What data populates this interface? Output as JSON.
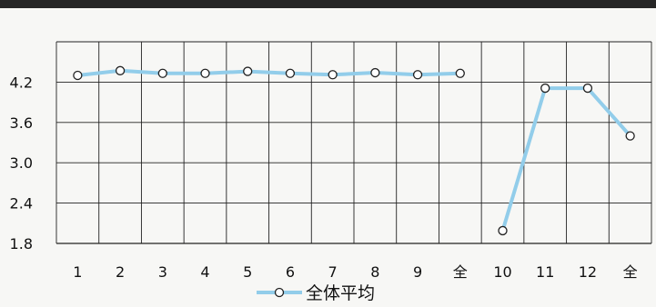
{
  "chart_data": {
    "type": "line",
    "categories": [
      "1",
      "2",
      "3",
      "4",
      "5",
      "6",
      "7",
      "8",
      "9",
      "全",
      "10",
      "11",
      "12",
      "全"
    ],
    "groups": [
      {
        "start": 0,
        "end": 9
      },
      {
        "start": 10,
        "end": 13
      }
    ],
    "series": [
      {
        "name": "全体平均",
        "values": [
          4.3,
          4.37,
          4.33,
          4.33,
          4.36,
          4.33,
          4.31,
          4.34,
          4.31,
          4.33,
          1.99,
          4.11,
          4.11,
          3.4
        ]
      }
    ],
    "yticks": [
      "1.8",
      "2.4",
      "3.0",
      "3.6",
      "4.2"
    ],
    "ylim": [
      1.8,
      4.8
    ],
    "grid": true,
    "legend_position": "bottom",
    "title": "",
    "xlabel": "",
    "ylabel": ""
  },
  "colors": {
    "line": "#92cdea",
    "marker_fill": "#ffffff",
    "marker_stroke": "#222222",
    "grid": "#222222"
  }
}
